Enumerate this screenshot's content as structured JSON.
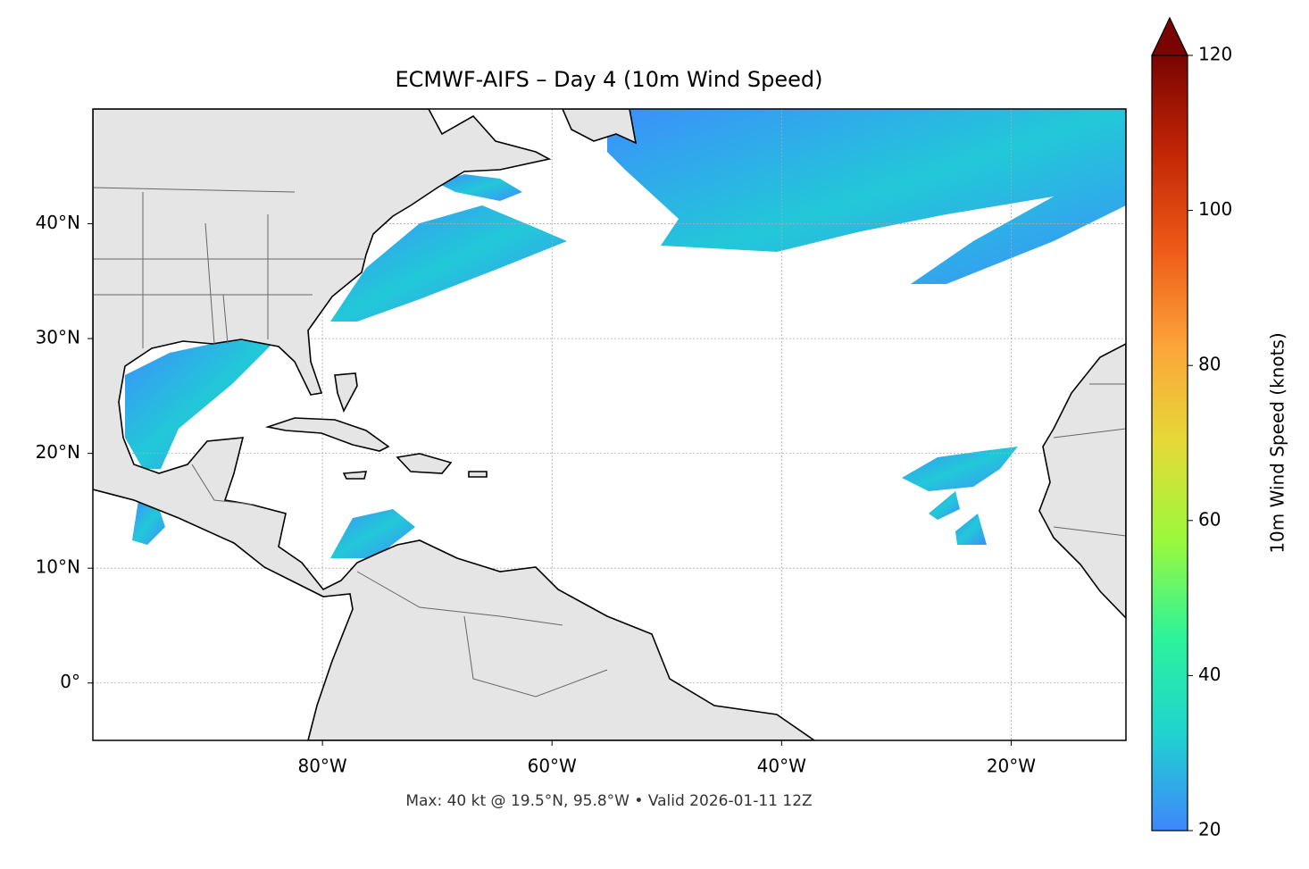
{
  "map": {
    "title": "ECMWF-AIFS – Day 4 (10m Wind Speed)",
    "xlim": [
      -100,
      -10
    ],
    "ylim": [
      -5,
      50
    ],
    "xticks": [
      {
        "value": -80,
        "label": "80°W"
      },
      {
        "value": -60,
        "label": "60°W"
      },
      {
        "value": -40,
        "label": "40°W"
      },
      {
        "value": -20,
        "label": "20°W"
      }
    ],
    "yticks": [
      {
        "value": 0,
        "label": "0°"
      },
      {
        "value": 10,
        "label": "10°N"
      },
      {
        "value": 20,
        "label": "20°N"
      },
      {
        "value": 30,
        "label": "30°N"
      },
      {
        "value": 40,
        "label": "40°N"
      }
    ],
    "grid": true,
    "footer": "Max: 40 kt @ 19.5°N, 95.8°W • Valid 2026-01-11 12Z"
  },
  "colorbar": {
    "label": "10m Wind Speed (knots)",
    "lim": [
      20,
      120
    ],
    "ticks": [
      20,
      40,
      60,
      80,
      100,
      120
    ],
    "colors": [
      "#3f86fb",
      "#1fd3cf",
      "#2df39a",
      "#9cf83c",
      "#e4da37",
      "#fca43a",
      "#ee5a18",
      "#c22606",
      "#7a0403"
    ]
  }
}
